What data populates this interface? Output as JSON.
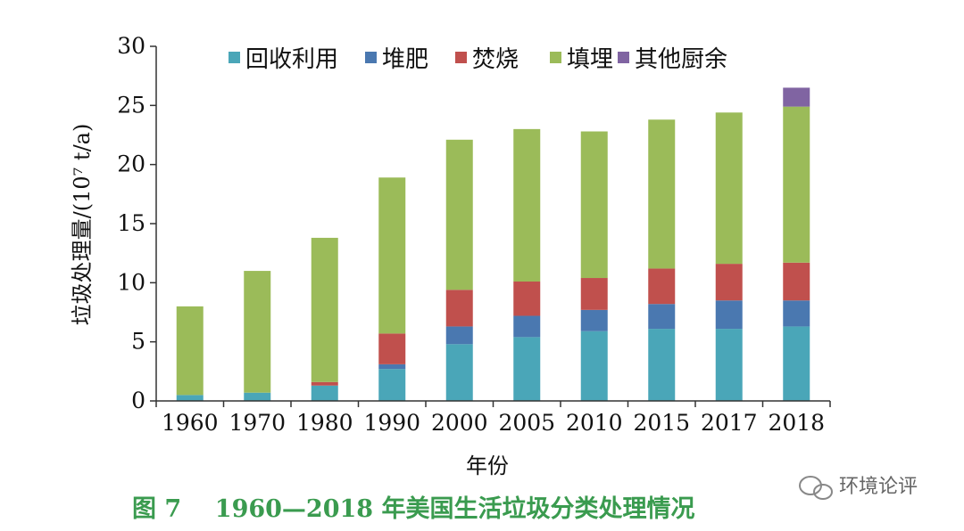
{
  "chart_data": {
    "type": "bar",
    "stacked": true,
    "categories": [
      "1960",
      "1970",
      "1980",
      "1990",
      "2000",
      "2005",
      "2010",
      "2015",
      "2017",
      "2018"
    ],
    "series": [
      {
        "name": "回收利用",
        "color": "#4aa6b8",
        "values": [
          0.5,
          0.7,
          1.3,
          2.7,
          4.8,
          5.4,
          5.9,
          6.1,
          6.1,
          6.3
        ]
      },
      {
        "name": "堆肥",
        "color": "#4a78b0",
        "values": [
          0.0,
          0.0,
          0.0,
          0.4,
          1.5,
          1.8,
          1.8,
          2.1,
          2.4,
          2.2
        ]
      },
      {
        "name": "焚烧",
        "color": "#c0504d",
        "values": [
          0.0,
          0.0,
          0.3,
          2.6,
          3.1,
          2.9,
          2.7,
          3.0,
          3.1,
          3.2
        ]
      },
      {
        "name": "填埋",
        "color": "#9bbb59",
        "values": [
          7.5,
          10.3,
          12.2,
          13.2,
          12.7,
          12.9,
          12.4,
          12.6,
          12.8,
          13.2
        ]
      },
      {
        "name": "其他厨余",
        "color": "#8064a2",
        "values": [
          0,
          0,
          0,
          0,
          0,
          0,
          0,
          0,
          0,
          1.6
        ]
      }
    ],
    "ylim": [
      0,
      30
    ],
    "yticks": [
      "0",
      "5",
      "10",
      "15",
      "20",
      "25",
      "30"
    ],
    "ylabel": "垃圾处理量/(10⁷ t/a)",
    "xlabel": "年份",
    "legend_position": "top"
  },
  "caption": "图 7    1960—2018 年美国生活垃圾分类处理情况",
  "watermark": "环境论评"
}
